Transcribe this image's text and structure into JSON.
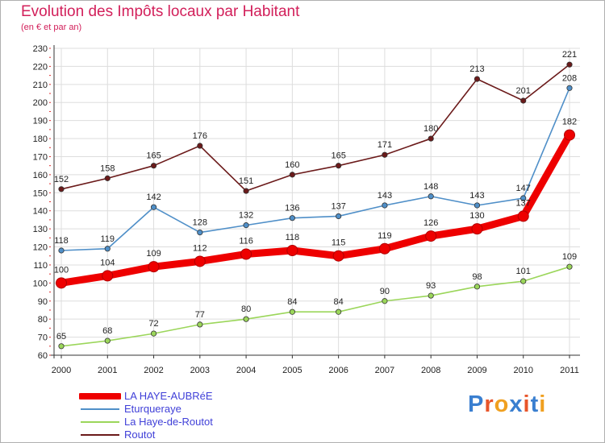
{
  "header": {
    "title": "Evolution des Impôts locaux par Habitant",
    "subtitle": "(en € et par an)"
  },
  "logo": {
    "text": "Proxiti"
  },
  "chart_data": {
    "type": "line",
    "title": "Evolution des Impôts locaux par Habitant",
    "subtitle": "(en € et par an)",
    "xlabel": "",
    "ylabel": "",
    "categories": [
      "2000",
      "2001",
      "2002",
      "2003",
      "2004",
      "2005",
      "2006",
      "2007",
      "2008",
      "2009",
      "2010",
      "2011"
    ],
    "ylim": [
      60,
      230
    ],
    "yticks": [
      60,
      70,
      80,
      90,
      100,
      110,
      120,
      130,
      140,
      150,
      160,
      170,
      180,
      190,
      200,
      210,
      220,
      230
    ],
    "grid": true,
    "legend_position": "bottom-left",
    "series": [
      {
        "name": "LA HAYE-AUBRéE",
        "color": "#ee0000",
        "values": [
          100,
          104,
          109,
          112,
          116,
          118,
          115,
          119,
          126,
          130,
          137,
          182
        ],
        "labels": [
          "100",
          "104",
          "109",
          "112",
          "116",
          "118",
          "115",
          "119",
          "126",
          "130",
          "137",
          "182"
        ]
      },
      {
        "name": "Eturqueraye",
        "color": "#4f8fc8",
        "values": [
          118,
          119,
          142,
          128,
          132,
          136,
          137,
          143,
          148,
          143,
          147,
          208
        ],
        "labels": [
          "118",
          "119",
          "142",
          "128",
          "132",
          "136",
          "137",
          "143",
          "148",
          "143",
          "147",
          "208"
        ]
      },
      {
        "name": "La Haye-de-Routot",
        "color": "#9bd65a",
        "values": [
          65,
          68,
          72,
          77,
          80,
          84,
          84,
          90,
          93,
          98,
          101,
          109
        ],
        "labels": [
          "65",
          "68",
          "72",
          "77",
          "80",
          "84",
          "84",
          "90",
          "93",
          "98",
          "101",
          "109"
        ]
      },
      {
        "name": "Routot",
        "color": "#6b1a1a",
        "values": [
          152,
          158,
          165,
          176,
          151,
          160,
          165,
          171,
          180,
          213,
          201,
          221
        ],
        "labels": [
          "152",
          "158",
          "165",
          "176",
          "151",
          "160",
          "165",
          "171",
          "180",
          "213",
          "201",
          "221"
        ]
      }
    ]
  }
}
